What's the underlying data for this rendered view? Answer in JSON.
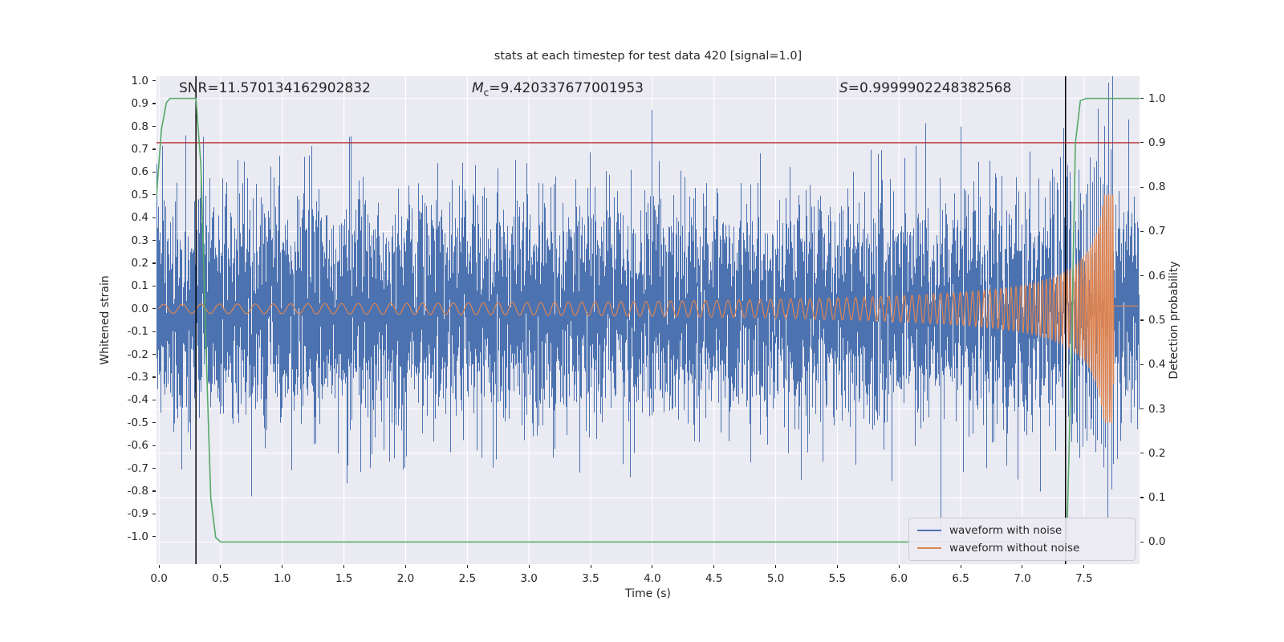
{
  "chart_data": {
    "type": "line",
    "title": "stats at each timestep for test data 420 [signal=1.0]",
    "xlabel": "Time (s)",
    "ylabel_left": "Whitened strain",
    "ylabel_right": "Detection probability",
    "background_color": "#eaeaf2",
    "grid_color": "#ffffff",
    "annotations": {
      "snr": "SNR=11.570134162902832",
      "mc_symbol": "M",
      "mc_subscript": "c",
      "mc_value": "=9.420337677001953",
      "s_symbol": "S",
      "s_value": "=0.9999902248382568"
    },
    "stats": {
      "SNR": 11.570134162902832,
      "Mc": 9.420337677001953,
      "S": 0.9999902248382568
    },
    "xlim": [
      -0.02,
      7.95
    ],
    "ylim_left": [
      -1.12,
      1.02
    ],
    "ylim_right": [
      -0.05,
      1.05
    ],
    "x_tick_labels": [
      "0.0",
      "0.5",
      "1.0",
      "1.5",
      "2.0",
      "2.5",
      "3.0",
      "3.5",
      "4.0",
      "4.5",
      "5.0",
      "5.5",
      "6.0",
      "6.5",
      "7.0",
      "7.5"
    ],
    "y_tick_labels_left": [
      "1.0",
      "0.9",
      "0.8",
      "0.7",
      "0.6",
      "0.5",
      "0.4",
      "0.3",
      "0.2",
      "0.1",
      "0.0",
      "-0.1",
      "-0.2",
      "-0.3",
      "-0.4",
      "-0.5",
      "-0.6",
      "-0.7",
      "-0.8",
      "-0.9",
      "-1.0"
    ],
    "y_tick_labels_right": [
      "1.0",
      "0.9",
      "0.8",
      "0.7",
      "0.6",
      "0.5",
      "0.4",
      "0.3",
      "0.2",
      "0.1",
      "0.0"
    ],
    "threshold_line": {
      "axis": "right",
      "value": 0.9,
      "color": "#b22222"
    },
    "event_marker_lines": {
      "axis": "x",
      "values": [
        0.3,
        7.35
      ],
      "color": "#000000",
      "width": 1.5
    },
    "series": [
      {
        "name": "waveform with noise",
        "color": "#4c72b0",
        "kind": "gaussian_noise_plus_signal",
        "std": 0.23,
        "samples_per_pixel": 6,
        "seed": 7
      },
      {
        "name": "waveform without noise",
        "color": "#dd8452",
        "kind": "chirp",
        "f0": 6.5,
        "freq_exponent": 0.6,
        "amp0": 0.02,
        "amp_exponent": 0.7,
        "t_merger": 7.74,
        "peak_amp": 0.5,
        "freq_cap": 60,
        "post_merger_level": 0.012,
        "duration": 7.9375
      },
      {
        "name": "detection probability",
        "color": "#55a868",
        "axis": "right",
        "points": [
          [
            -0.02,
            0.78
          ],
          [
            0.02,
            0.93
          ],
          [
            0.06,
            0.99
          ],
          [
            0.09,
            1.0
          ],
          [
            0.3,
            1.0
          ],
          [
            0.34,
            0.85
          ],
          [
            0.38,
            0.45
          ],
          [
            0.42,
            0.1
          ],
          [
            0.46,
            0.01
          ],
          [
            0.5,
            0.0
          ],
          [
            7.36,
            0.0
          ],
          [
            7.4,
            0.45
          ],
          [
            7.43,
            0.9
          ],
          [
            7.47,
            0.995
          ],
          [
            7.52,
            1.0
          ],
          [
            7.95,
            1.0
          ]
        ]
      }
    ],
    "legend": {
      "location": "lower right",
      "entries": [
        {
          "label": "waveform with noise",
          "color": "#4c72b0"
        },
        {
          "label": "waveform without noise",
          "color": "#dd8452"
        }
      ]
    }
  }
}
